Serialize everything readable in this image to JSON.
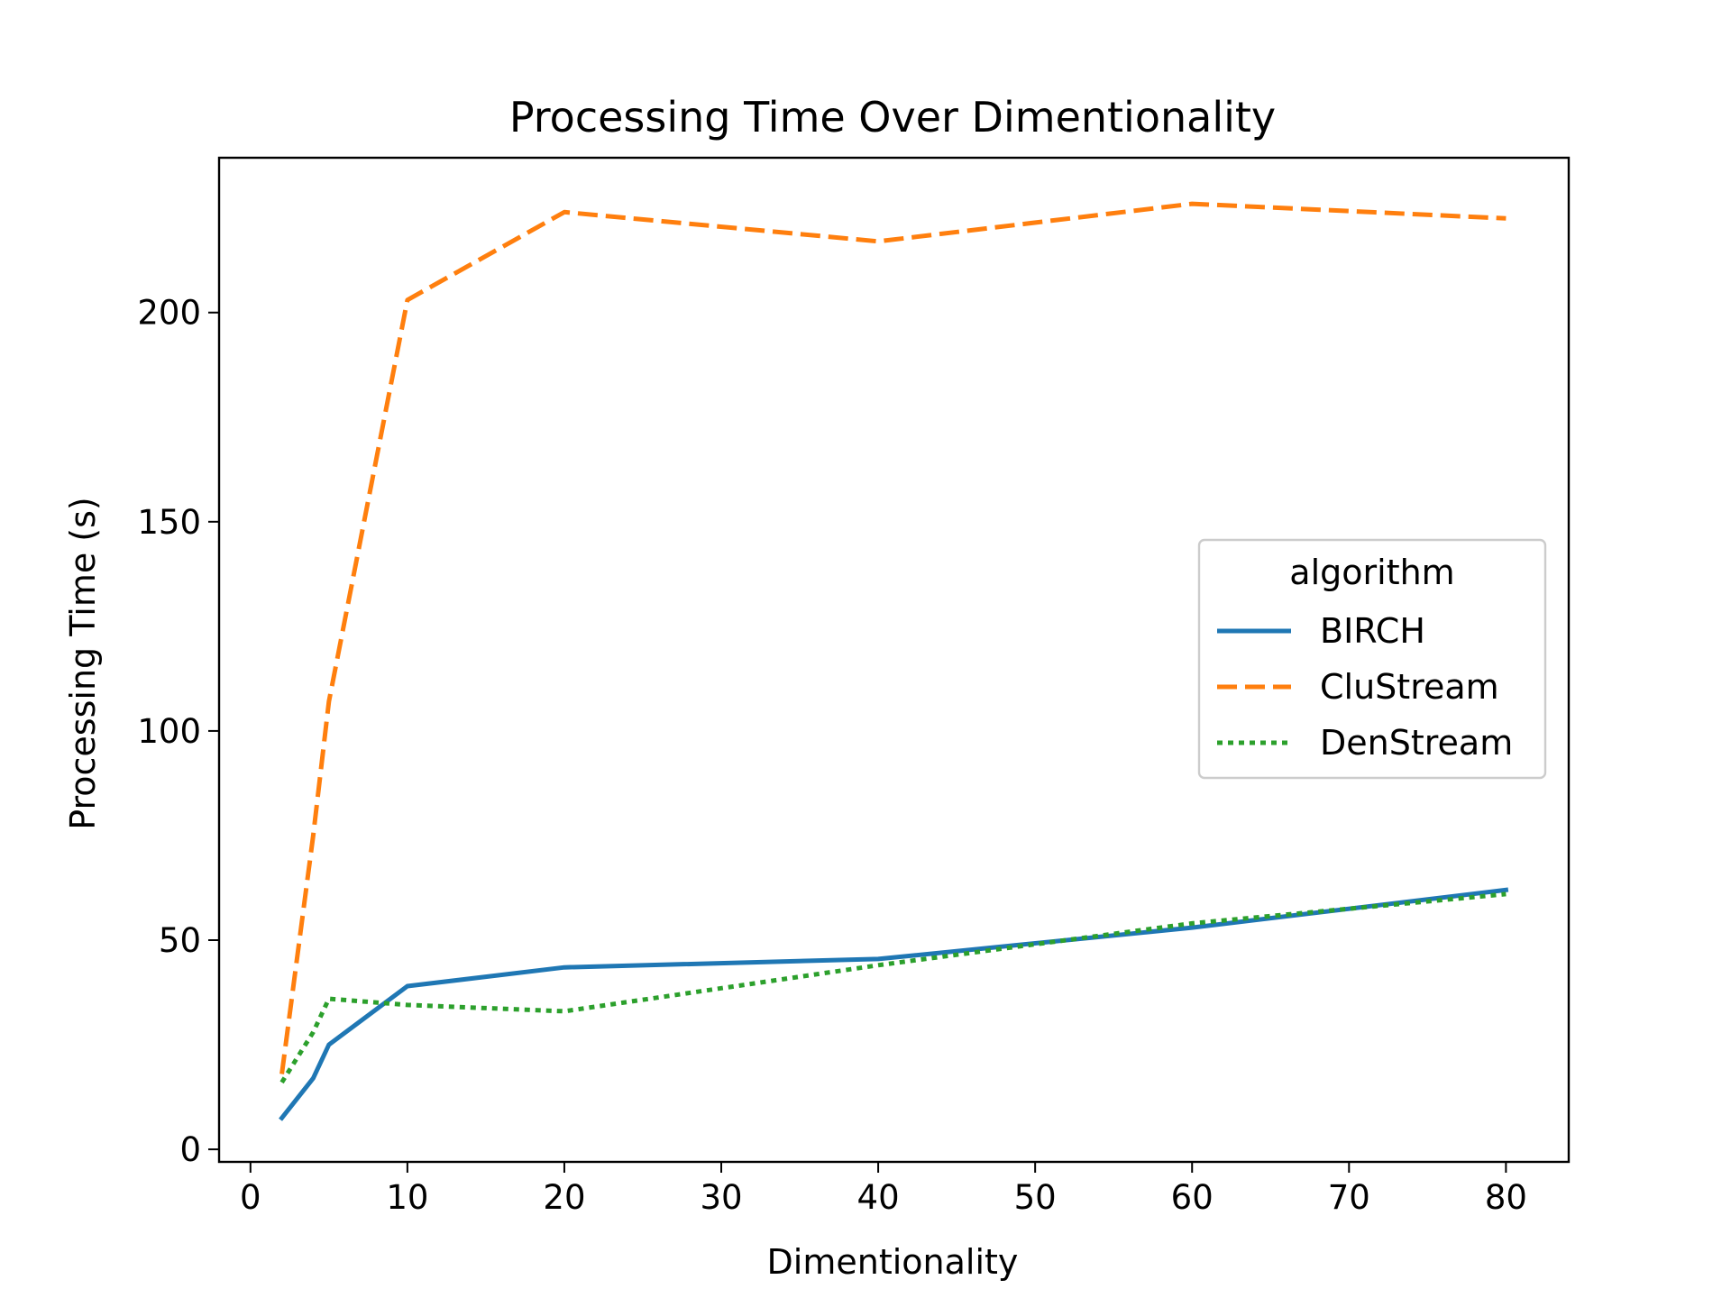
{
  "chart_data": {
    "type": "line",
    "title": "Processing Time Over Dimentionality",
    "xlabel": "Dimentionality",
    "ylabel": "Processing Time (s)",
    "xlim": [
      -2,
      84
    ],
    "ylim": [
      -3,
      237
    ],
    "xticks": [
      0,
      10,
      20,
      30,
      40,
      50,
      60,
      70,
      80
    ],
    "yticks": [
      0,
      50,
      100,
      150,
      200
    ],
    "grid": false,
    "legend": {
      "title": "algorithm",
      "placement": "center-right"
    },
    "series": [
      {
        "name": "BIRCH",
        "color": "#1f77b4",
        "style": "solid",
        "x": [
          2,
          4,
          5,
          10,
          20,
          40,
          60,
          80
        ],
        "y": [
          7.5,
          17,
          25,
          39,
          43.5,
          45.5,
          53,
          62
        ]
      },
      {
        "name": "CluStream",
        "color": "#ff7f0e",
        "style": "dashed",
        "x": [
          2,
          4,
          5,
          10,
          20,
          40,
          60,
          80
        ],
        "y": [
          18,
          75,
          107,
          203,
          224,
          217,
          226,
          222.5
        ]
      },
      {
        "name": "DenStream",
        "color": "#2ca02c",
        "style": "dotted",
        "x": [
          2,
          4,
          5,
          10,
          20,
          40,
          60,
          80
        ],
        "y": [
          16,
          28,
          36,
          34.5,
          33,
          44,
          54,
          61
        ]
      }
    ]
  }
}
